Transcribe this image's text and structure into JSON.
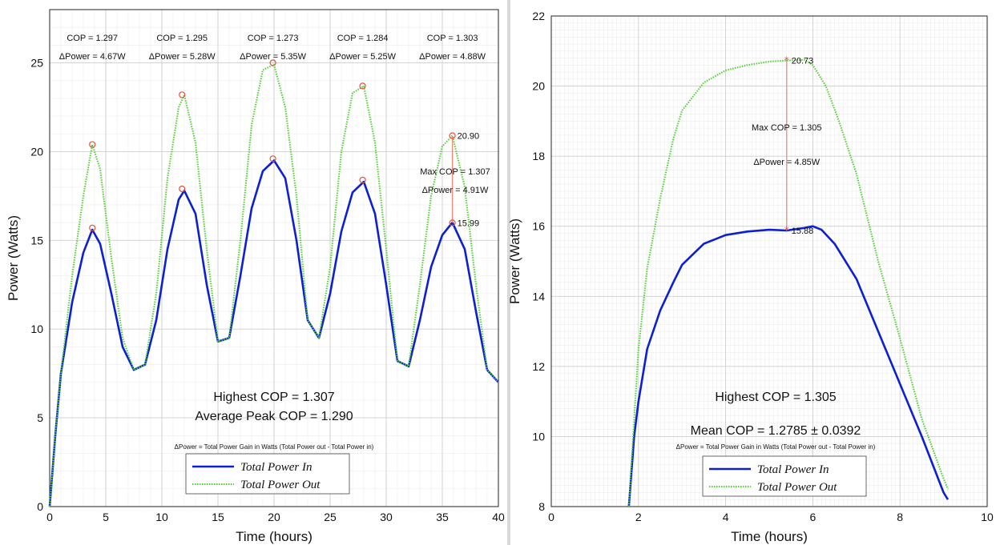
{
  "chart_data": [
    {
      "type": "line",
      "xlabel": "Time (hours)",
      "ylabel": "Power (Watts)",
      "xlim": [
        0,
        40
      ],
      "ylim": [
        0,
        28
      ],
      "xticks": [
        "0",
        "5",
        "10",
        "15",
        "20",
        "25",
        "30",
        "35",
        "40"
      ],
      "yticks": [
        "0",
        "5",
        "10",
        "15",
        "20",
        "25"
      ],
      "grid": true,
      "legend_position": "bottom-center",
      "series": [
        {
          "name": "Total Power In",
          "color": "#0b1fd6",
          "style": "solid",
          "x": [
            0,
            0.5,
            1,
            2,
            3,
            3.8,
            4.5,
            5.5,
            6.5,
            7.5,
            8.5,
            9.5,
            10.5,
            11.5,
            12,
            13,
            14,
            15,
            16,
            17,
            18,
            19,
            20,
            21,
            22,
            23,
            24,
            25,
            26,
            27,
            28,
            29,
            30,
            31,
            32,
            33,
            34,
            35,
            35.9,
            37,
            38,
            39,
            40
          ],
          "values": [
            0,
            4,
            7.5,
            11.5,
            14.3,
            15.6,
            14.8,
            12,
            9,
            7.7,
            8,
            10.5,
            14.5,
            17.3,
            17.8,
            16.5,
            12.5,
            9.3,
            9.5,
            13,
            16.8,
            18.9,
            19.5,
            18.5,
            15,
            10.5,
            9.5,
            12,
            15.5,
            17.7,
            18.3,
            16.5,
            12.5,
            8.2,
            7.9,
            10.5,
            13.5,
            15.3,
            16,
            14.5,
            11,
            7.7,
            7
          ]
        },
        {
          "name": "Total Power Out",
          "color": "#4ad12a",
          "style": "dotted",
          "x": [
            0,
            0.5,
            1,
            2,
            3,
            3.8,
            4.5,
            5.5,
            6.5,
            7.5,
            8.5,
            9.5,
            10.5,
            11.5,
            12,
            13,
            14,
            15,
            16,
            17,
            18,
            19,
            20,
            21,
            22,
            23,
            24,
            25,
            26,
            27,
            28,
            29,
            30,
            31,
            32,
            33,
            34,
            35,
            35.9,
            37,
            38,
            39,
            40
          ],
          "values": [
            0,
            4,
            7.5,
            13,
            17.5,
            20.4,
            19,
            14,
            9.5,
            7.7,
            8,
            12,
            18.5,
            22.5,
            23.2,
            20.5,
            14.5,
            9.3,
            9.5,
            15,
            21.5,
            24.6,
            24.9,
            22.5,
            17.5,
            10.5,
            9.5,
            13.5,
            20,
            23.3,
            23.7,
            20.5,
            14.5,
            8.2,
            7.9,
            12.5,
            17.5,
            20.3,
            20.9,
            18,
            12.5,
            7.7,
            7
          ]
        }
      ],
      "peak_markers": [
        {
          "x": 3.8,
          "in": 15.7,
          "out": 20.4
        },
        {
          "x": 11.8,
          "in": 17.9,
          "out": 23.2
        },
        {
          "x": 19.9,
          "in": 19.6,
          "out": 25.0
        },
        {
          "x": 27.9,
          "in": 18.4,
          "out": 23.7
        },
        {
          "x": 35.9,
          "in": 15.99,
          "out": 20.9
        }
      ],
      "annotations": {
        "cop": [
          "COP = 1.297",
          "COP = 1.295",
          "COP = 1.273",
          "COP = 1.284",
          "COP = 1.303"
        ],
        "delta": [
          "ΔPower = 4.67W",
          "ΔPower = 5.28W",
          "ΔPower = 5.35W",
          "ΔPower = 5.25W",
          "ΔPower = 4.88W"
        ],
        "peak_out_label": "20.90",
        "peak_in_label": "15.99",
        "max_cop": "Max COP = 1.307",
        "max_delta": "ΔPower = 4.91W",
        "highest": "Highest COP = 1.307",
        "average": "Average Peak COP = 1.290",
        "footnote": "ΔPower = Total Power Gain in Watts (Total Power out - Total Power in)"
      }
    },
    {
      "type": "line",
      "xlabel": "Time (hours)",
      "ylabel": "Power (Watts)",
      "xlim": [
        0,
        10
      ],
      "ylim": [
        8,
        22
      ],
      "xticks": [
        "0",
        "2",
        "4",
        "6",
        "8",
        "10"
      ],
      "yticks": [
        "8",
        "10",
        "12",
        "14",
        "16",
        "18",
        "20",
        "22"
      ],
      "grid": true,
      "legend_position": "bottom-center",
      "series": [
        {
          "name": "Total Power In",
          "color": "#0b1fd6",
          "style": "solid",
          "x": [
            1.78,
            1.9,
            2.0,
            2.2,
            2.5,
            2.8,
            3.0,
            3.5,
            4.0,
            4.5,
            5.0,
            5.4,
            5.8,
            6.0,
            6.2,
            6.5,
            7.0,
            7.5,
            8.0,
            8.5,
            9.0,
            9.1
          ],
          "values": [
            8,
            10,
            11,
            12.5,
            13.6,
            14.4,
            14.9,
            15.5,
            15.75,
            15.85,
            15.9,
            15.88,
            15.95,
            16.0,
            15.9,
            15.5,
            14.5,
            13.0,
            11.5,
            10.0,
            8.4,
            8.2
          ]
        },
        {
          "name": "Total Power Out",
          "color": "#4ad12a",
          "style": "dotted",
          "x": [
            1.78,
            2.0,
            2.2,
            2.5,
            2.8,
            3.0,
            3.5,
            4.0,
            4.5,
            5.0,
            5.4,
            5.8,
            6.0,
            6.3,
            6.6,
            7.0,
            7.5,
            8.0,
            8.5,
            9.0,
            9.1
          ],
          "values": [
            8,
            12.5,
            14.8,
            16.8,
            18.5,
            19.3,
            20.1,
            20.45,
            20.6,
            20.7,
            20.73,
            20.75,
            20.6,
            20.0,
            19.0,
            17.5,
            15.0,
            12.8,
            10.5,
            8.8,
            8.5
          ]
        }
      ],
      "peak_markers": [
        {
          "x": 5.4,
          "in": 15.88,
          "out": 20.73
        }
      ],
      "annotations": {
        "peak_out_label": "20.73",
        "peak_in_label": "15.88",
        "max_cop": "Max COP = 1.305",
        "max_delta": "ΔPower = 4.85W",
        "highest": "Highest COP = 1.305",
        "mean": "Mean COP = 1.2785 ± 0.0392",
        "footnote": "ΔPower = Total Power Gain in Watts (Total Power out - Total Power in)"
      }
    }
  ]
}
